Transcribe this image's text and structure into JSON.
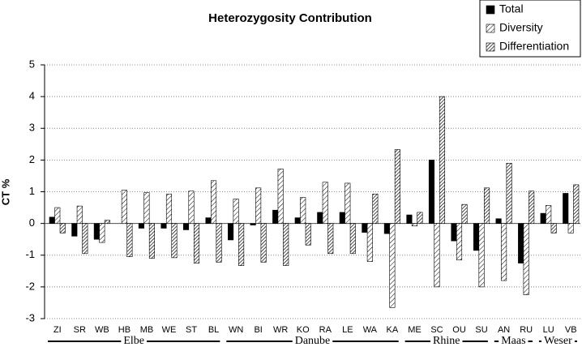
{
  "chart_data": {
    "type": "bar",
    "title": "Heterozygosity Contribution",
    "y_label": "CT %",
    "categories": [
      "ZI",
      "SR",
      "WB",
      "HB",
      "MB",
      "WE",
      "ST",
      "BL",
      "WN",
      "BI",
      "WR",
      "KO",
      "RA",
      "LE",
      "WA",
      "KA",
      "ME",
      "SC",
      "OU",
      "SU",
      "AN",
      "RU",
      "LU",
      "VB"
    ],
    "category_groups": [
      "Elbe",
      "Elbe",
      "Elbe",
      "Elbe",
      "Elbe",
      "Elbe",
      "Elbe",
      "Elbe",
      "Danube",
      "Danube",
      "Danube",
      "Danube",
      "Danube",
      "Danube",
      "Danube",
      "Danube",
      "Rhine",
      "Rhine",
      "Rhine",
      "Rhine",
      "Maas",
      "Maas",
      "Weser",
      "Weser"
    ],
    "series": [
      {
        "name": "Total",
        "color": "#000000",
        "pattern": "solid",
        "values": [
          0.2,
          -0.4,
          -0.5,
          0,
          -0.15,
          -0.15,
          -0.2,
          0.18,
          -0.52,
          -0.05,
          0.42,
          0.18,
          0.35,
          0.35,
          -0.28,
          -0.32,
          0.27,
          2.0,
          -0.55,
          -0.85,
          0.15,
          -1.25,
          0.32,
          0.95
        ]
      },
      {
        "name": "Diversity",
        "color": "#000000",
        "pattern": "sparse-hatch",
        "values": [
          0.5,
          0.55,
          -0.6,
          1.05,
          0.97,
          0.93,
          1.02,
          1.35,
          0.77,
          1.12,
          1.72,
          0.82,
          1.3,
          1.27,
          -1.2,
          -2.65,
          -0.08,
          -2.0,
          -1.15,
          -2.0,
          -1.8,
          -2.25,
          0.57,
          -0.3
        ]
      },
      {
        "name": "Differentiation",
        "color": "#000000",
        "pattern": "dense-hatch",
        "values": [
          -0.3,
          -0.95,
          0.1,
          -1.05,
          -1.1,
          -1.08,
          -1.25,
          -1.22,
          -1.33,
          -1.22,
          -1.33,
          -0.68,
          -0.95,
          -0.95,
          0.93,
          2.33,
          0.35,
          4.0,
          0.6,
          1.12,
          1.9,
          1.02,
          -0.3,
          1.22
        ]
      }
    ],
    "ylim": [
      -3,
      5
    ],
    "yticks": [
      -3,
      -2,
      -1,
      0,
      1,
      2,
      3,
      4,
      5
    ],
    "grid": true,
    "legend": "top-right"
  }
}
